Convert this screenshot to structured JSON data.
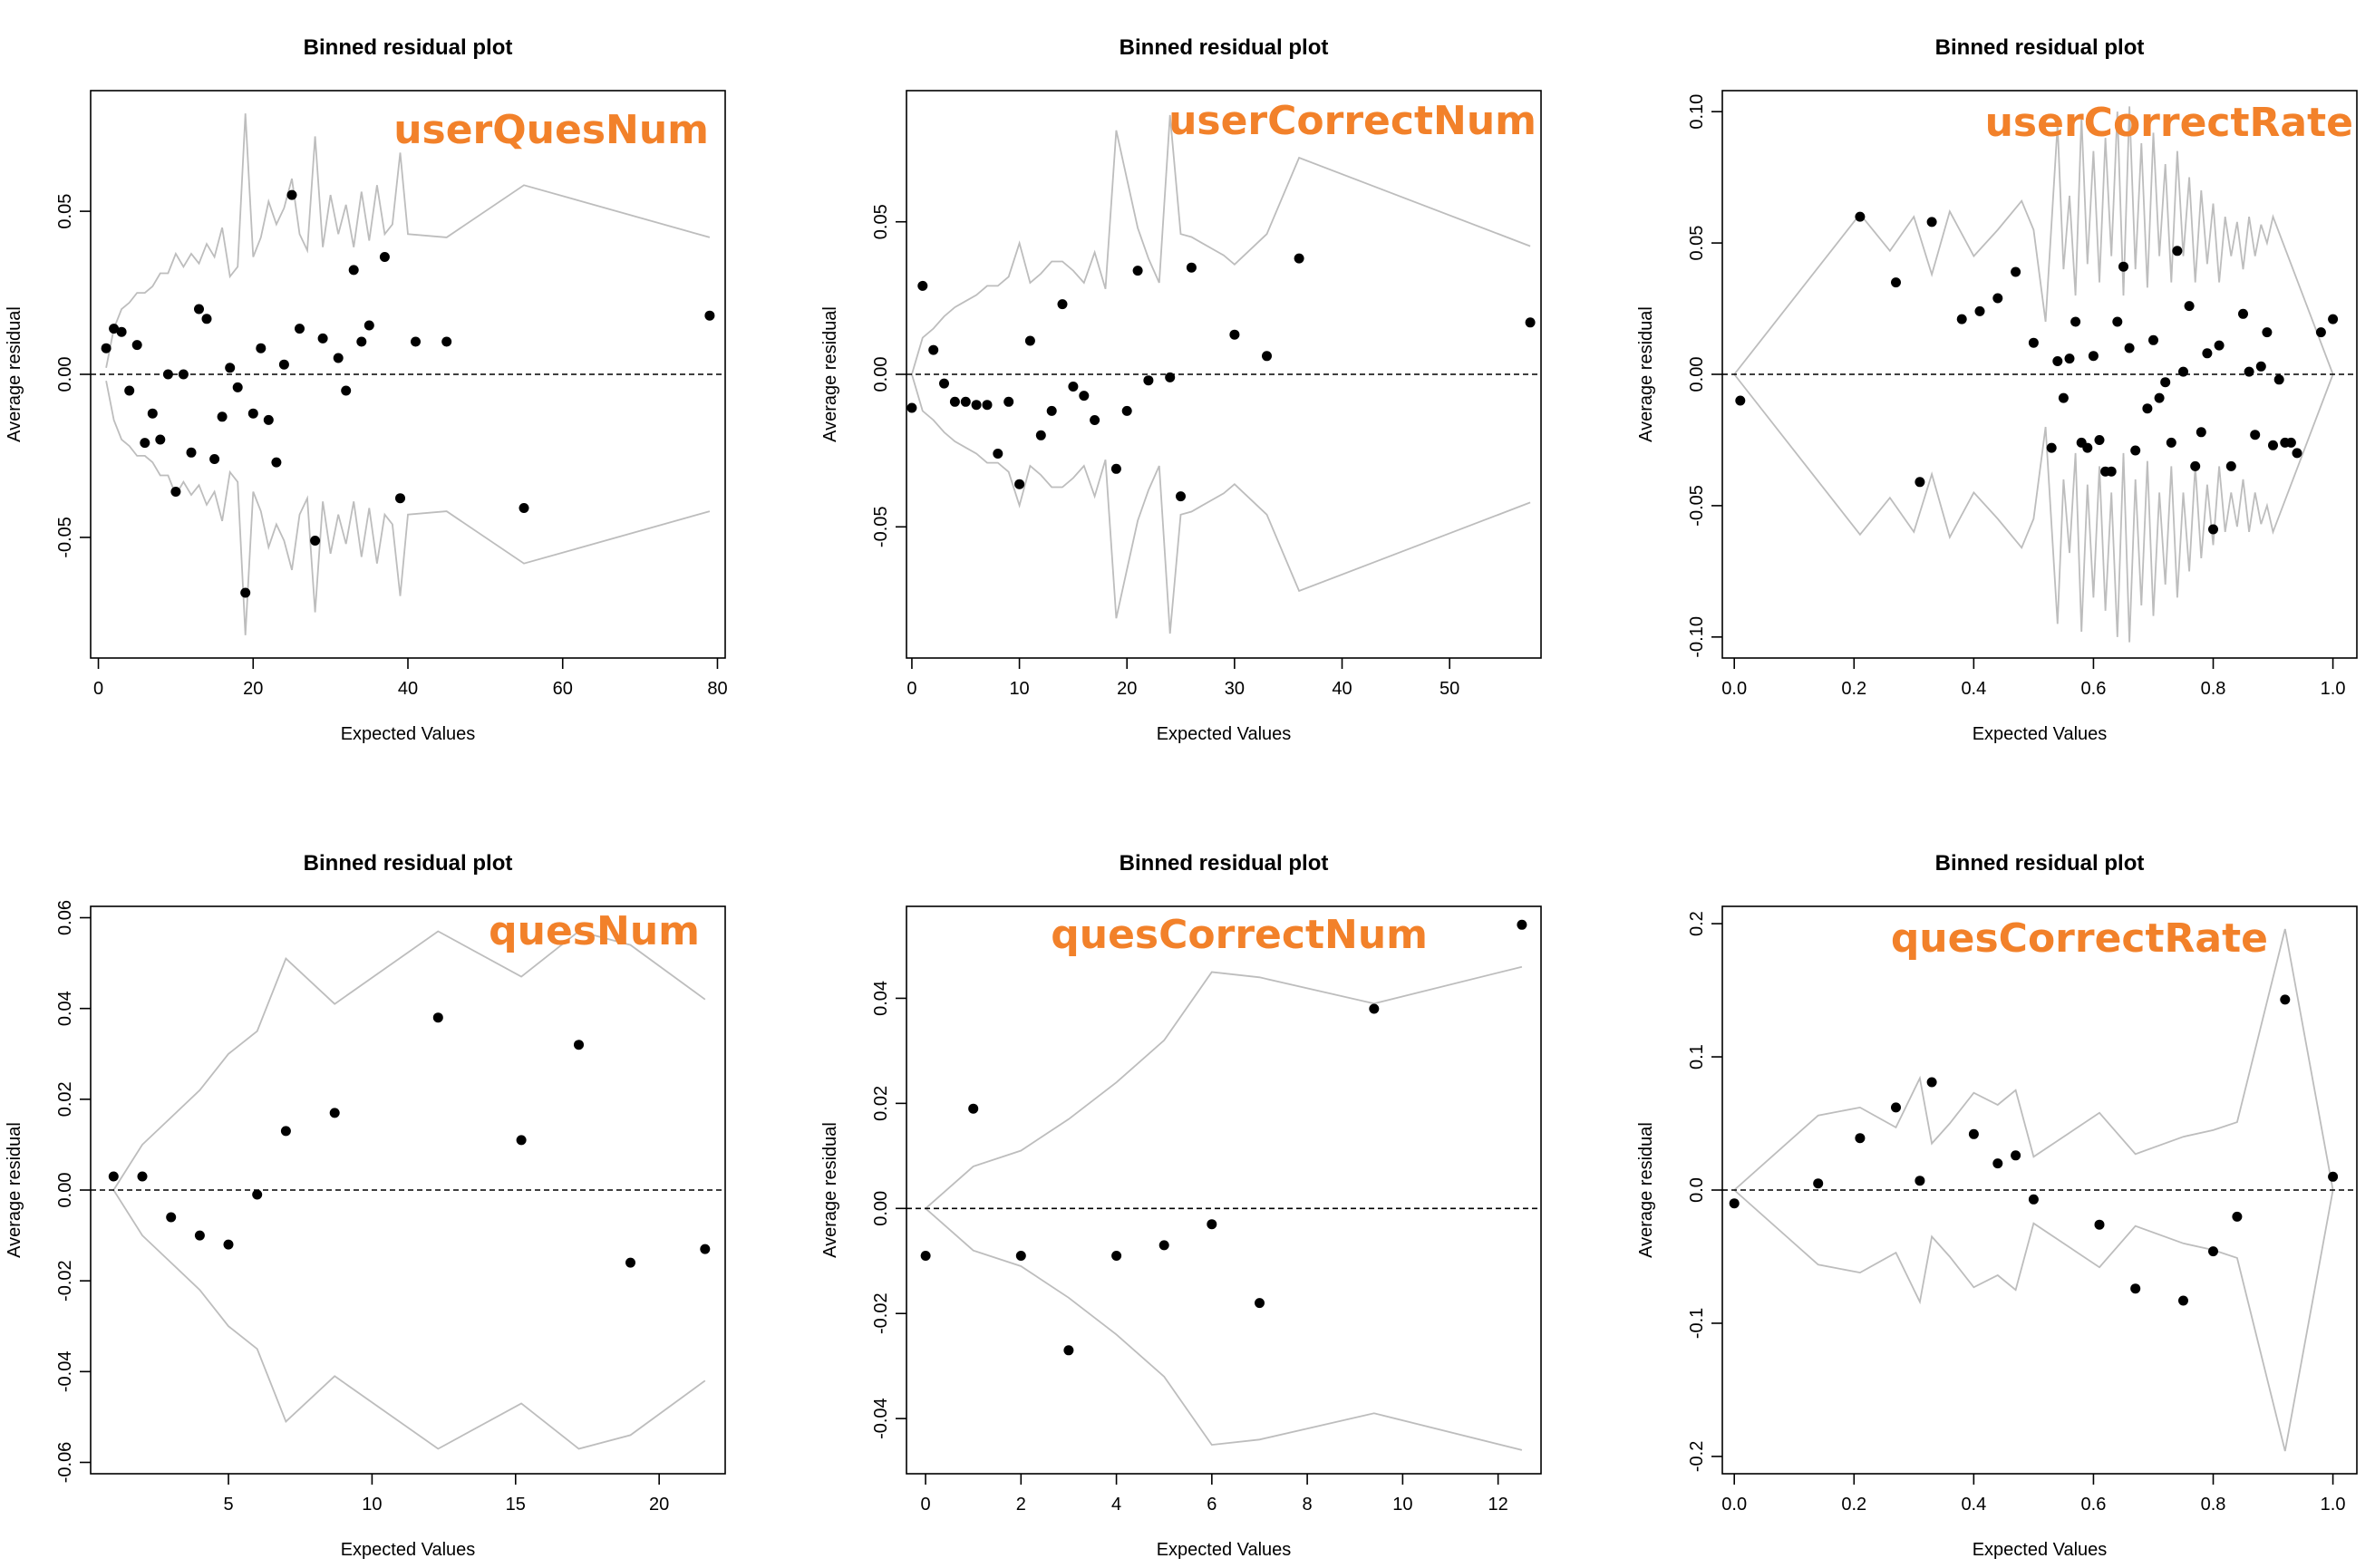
{
  "chart_data": [
    {
      "type": "scatter",
      "title": "Binned residual plot",
      "panel_label": "userQuesNum",
      "xlabel": "Expected Values",
      "ylabel": "Average residual",
      "xlim": [
        -1,
        81
      ],
      "ylim": [
        -0.087,
        0.087
      ],
      "xticks": [
        0,
        20,
        40,
        60,
        80
      ],
      "yticks": [
        -0.05,
        0.0,
        0.05
      ],
      "ytick_labels": [
        "-0.05",
        "0.00",
        "0.05"
      ],
      "points": [
        [
          1,
          0.008
        ],
        [
          2,
          0.014
        ],
        [
          3,
          0.013
        ],
        [
          4,
          -0.005
        ],
        [
          5,
          0.009
        ],
        [
          6,
          -0.021
        ],
        [
          7,
          -0.012
        ],
        [
          8,
          -0.02
        ],
        [
          9,
          0.0
        ],
        [
          10,
          -0.036
        ],
        [
          11,
          0.0
        ],
        [
          12,
          -0.024
        ],
        [
          13,
          0.02
        ],
        [
          14,
          0.017
        ],
        [
          15,
          -0.026
        ],
        [
          16,
          -0.013
        ],
        [
          17,
          0.002
        ],
        [
          18,
          -0.004
        ],
        [
          19,
          -0.067
        ],
        [
          20,
          -0.012
        ],
        [
          21,
          0.008
        ],
        [
          22,
          -0.014
        ],
        [
          23,
          -0.027
        ],
        [
          24,
          0.003
        ],
        [
          25,
          0.055
        ],
        [
          26,
          0.014
        ],
        [
          28,
          -0.051
        ],
        [
          29,
          0.011
        ],
        [
          31,
          0.005
        ],
        [
          32,
          -0.005
        ],
        [
          33,
          0.032
        ],
        [
          34,
          0.01
        ],
        [
          35,
          0.015
        ],
        [
          37,
          0.036
        ],
        [
          39,
          -0.038
        ],
        [
          41,
          0.01
        ],
        [
          45,
          0.01
        ],
        [
          55,
          -0.041
        ],
        [
          79,
          0.018
        ]
      ],
      "band_x": [
        1,
        2,
        3,
        4,
        5,
        6,
        7,
        8,
        9,
        10,
        11,
        12,
        13,
        14,
        15,
        16,
        17,
        18,
        19,
        20,
        21,
        22,
        23,
        24,
        25,
        26,
        27,
        28,
        29,
        30,
        31,
        32,
        33,
        34,
        35,
        36,
        37,
        38,
        39,
        40,
        45,
        55,
        79
      ],
      "band_upper": [
        0.002,
        0.014,
        0.02,
        0.022,
        0.025,
        0.025,
        0.027,
        0.031,
        0.031,
        0.037,
        0.033,
        0.037,
        0.034,
        0.04,
        0.036,
        0.045,
        0.03,
        0.033,
        0.08,
        0.036,
        0.042,
        0.053,
        0.046,
        0.051,
        0.06,
        0.043,
        0.038,
        0.073,
        0.039,
        0.055,
        0.043,
        0.052,
        0.039,
        0.056,
        0.041,
        0.058,
        0.043,
        0.046,
        0.068,
        0.043,
        0.042,
        0.058,
        0.042
      ]
    },
    {
      "type": "scatter",
      "title": "Binned residual plot",
      "panel_label": "userCorrectNum",
      "xlabel": "Expected Values",
      "ylabel": "Average residual",
      "xlim": [
        -0.5,
        58.5
      ],
      "ylim": [
        -0.093,
        0.093
      ],
      "xticks": [
        0,
        10,
        20,
        30,
        40,
        50
      ],
      "yticks": [
        -0.05,
        0.0,
        0.05
      ],
      "ytick_labels": [
        "-0.05",
        "0.00",
        "0.05"
      ],
      "points": [
        [
          0,
          -0.011
        ],
        [
          1,
          0.029
        ],
        [
          2,
          0.008
        ],
        [
          3,
          -0.003
        ],
        [
          4,
          -0.009
        ],
        [
          5,
          -0.009
        ],
        [
          6,
          -0.01
        ],
        [
          7,
          -0.01
        ],
        [
          8,
          -0.026
        ],
        [
          9,
          -0.009
        ],
        [
          10,
          -0.036
        ],
        [
          11,
          0.011
        ],
        [
          12,
          -0.02
        ],
        [
          13,
          -0.012
        ],
        [
          14,
          0.023
        ],
        [
          15,
          -0.004
        ],
        [
          16,
          -0.007
        ],
        [
          17,
          -0.015
        ],
        [
          19,
          -0.031
        ],
        [
          20,
          -0.012
        ],
        [
          21,
          0.034
        ],
        [
          22,
          -0.002
        ],
        [
          24,
          -0.001
        ],
        [
          25,
          -0.04
        ],
        [
          26,
          0.035
        ],
        [
          30,
          0.013
        ],
        [
          33,
          0.006
        ],
        [
          36,
          0.038
        ],
        [
          57.5,
          0.017
        ]
      ],
      "band_x": [
        0,
        1,
        2,
        3,
        4,
        5,
        6,
        7,
        8,
        9,
        10,
        11,
        12,
        13,
        14,
        15,
        16,
        17,
        18,
        19,
        20,
        21,
        22,
        23,
        24,
        25,
        26,
        27,
        28,
        29,
        30,
        33,
        36,
        57.5
      ],
      "band_upper": [
        0.0,
        0.012,
        0.015,
        0.019,
        0.022,
        0.024,
        0.026,
        0.029,
        0.029,
        0.032,
        0.043,
        0.03,
        0.033,
        0.037,
        0.037,
        0.034,
        0.03,
        0.04,
        0.028,
        0.08,
        0.064,
        0.048,
        0.038,
        0.03,
        0.085,
        0.046,
        0.045,
        0.043,
        0.041,
        0.039,
        0.036,
        0.046,
        0.071,
        0.042
      ]
    },
    {
      "type": "scatter",
      "title": "Binned residual plot",
      "panel_label": "userCorrectRate",
      "xlabel": "Expected Values",
      "ylabel": "Average residual",
      "xlim": [
        -0.02,
        1.04
      ],
      "ylim": [
        -0.108,
        0.108
      ],
      "xticks": [
        0.0,
        0.2,
        0.4,
        0.6,
        0.8,
        1.0
      ],
      "xtick_labels": [
        "0.0",
        "0.2",
        "0.4",
        "0.6",
        "0.8",
        "1.0"
      ],
      "yticks": [
        -0.1,
        -0.05,
        0.0,
        0.05,
        0.1
      ],
      "ytick_labels": [
        "-0.10",
        "-0.05",
        "0.00",
        "0.05",
        "0.10"
      ],
      "points": [
        [
          0.01,
          -0.01
        ],
        [
          0.21,
          0.06
        ],
        [
          0.27,
          0.035
        ],
        [
          0.31,
          -0.041
        ],
        [
          0.33,
          0.058
        ],
        [
          0.38,
          0.021
        ],
        [
          0.41,
          0.024
        ],
        [
          0.44,
          0.029
        ],
        [
          0.47,
          0.039
        ],
        [
          0.5,
          0.012
        ],
        [
          0.53,
          -0.028
        ],
        [
          0.54,
          0.005
        ],
        [
          0.55,
          -0.009
        ],
        [
          0.56,
          0.006
        ],
        [
          0.57,
          0.02
        ],
        [
          0.58,
          -0.026
        ],
        [
          0.59,
          -0.028
        ],
        [
          0.6,
          0.007
        ],
        [
          0.61,
          -0.025
        ],
        [
          0.62,
          -0.037
        ],
        [
          0.63,
          -0.037
        ],
        [
          0.64,
          0.02
        ],
        [
          0.65,
          0.041
        ],
        [
          0.66,
          0.01
        ],
        [
          0.67,
          -0.029
        ],
        [
          0.69,
          -0.013
        ],
        [
          0.7,
          0.013
        ],
        [
          0.71,
          -0.009
        ],
        [
          0.72,
          -0.003
        ],
        [
          0.73,
          -0.026
        ],
        [
          0.74,
          0.047
        ],
        [
          0.75,
          0.001
        ],
        [
          0.76,
          0.026
        ],
        [
          0.77,
          -0.035
        ],
        [
          0.78,
          -0.022
        ],
        [
          0.79,
          0.008
        ],
        [
          0.8,
          -0.059
        ],
        [
          0.81,
          0.011
        ],
        [
          0.83,
          -0.035
        ],
        [
          0.85,
          0.023
        ],
        [
          0.86,
          0.001
        ],
        [
          0.87,
          -0.023
        ],
        [
          0.88,
          0.003
        ],
        [
          0.89,
          0.016
        ],
        [
          0.9,
          -0.027
        ],
        [
          0.91,
          -0.002
        ],
        [
          0.92,
          -0.026
        ],
        [
          0.93,
          -0.026
        ],
        [
          0.94,
          -0.03
        ],
        [
          0.98,
          0.016
        ],
        [
          1.0,
          0.021
        ]
      ],
      "band_x": [
        0.0,
        0.21,
        0.26,
        0.3,
        0.33,
        0.36,
        0.4,
        0.44,
        0.48,
        0.5,
        0.52,
        0.54,
        0.55,
        0.56,
        0.57,
        0.58,
        0.59,
        0.6,
        0.61,
        0.62,
        0.63,
        0.64,
        0.65,
        0.66,
        0.67,
        0.68,
        0.69,
        0.7,
        0.71,
        0.72,
        0.73,
        0.74,
        0.75,
        0.76,
        0.77,
        0.78,
        0.79,
        0.8,
        0.81,
        0.82,
        0.83,
        0.84,
        0.85,
        0.86,
        0.87,
        0.88,
        0.89,
        0.9,
        1.0
      ],
      "band_upper": [
        0.0,
        0.061,
        0.047,
        0.06,
        0.038,
        0.062,
        0.045,
        0.055,
        0.066,
        0.055,
        0.02,
        0.095,
        0.04,
        0.068,
        0.03,
        0.098,
        0.042,
        0.085,
        0.035,
        0.09,
        0.045,
        0.1,
        0.03,
        0.102,
        0.04,
        0.088,
        0.033,
        0.092,
        0.045,
        0.08,
        0.035,
        0.085,
        0.045,
        0.075,
        0.035,
        0.07,
        0.042,
        0.065,
        0.035,
        0.06,
        0.045,
        0.058,
        0.04,
        0.06,
        0.045,
        0.057,
        0.05,
        0.06,
        0.0
      ]
    },
    {
      "type": "scatter",
      "title": "Binned residual plot",
      "panel_label": "quesNum",
      "xlabel": "Expected Values",
      "ylabel": "Average residual",
      "xlim": [
        0.2,
        22.3
      ],
      "ylim": [
        -0.0625,
        0.0625
      ],
      "xticks": [
        5,
        10,
        15,
        20
      ],
      "yticks": [
        -0.06,
        -0.04,
        -0.02,
        0.0,
        0.02,
        0.04,
        0.06
      ],
      "ytick_labels": [
        "-0.06",
        "-0.04",
        "-0.02",
        "0.00",
        "0.02",
        "0.04",
        "0.06"
      ],
      "points": [
        [
          1,
          0.003
        ],
        [
          2,
          0.003
        ],
        [
          3,
          -0.006
        ],
        [
          4,
          -0.01
        ],
        [
          5,
          -0.012
        ],
        [
          6,
          -0.001
        ],
        [
          7,
          0.013
        ],
        [
          8.7,
          0.017
        ],
        [
          12.3,
          0.038
        ],
        [
          15.2,
          0.011
        ],
        [
          17.2,
          0.032
        ],
        [
          19,
          -0.016
        ],
        [
          21.6,
          -0.013
        ]
      ],
      "band_x": [
        1,
        2,
        3,
        4,
        5,
        6,
        7,
        8.7,
        12.3,
        15.2,
        17.2,
        19,
        21.6
      ],
      "band_upper": [
        0.0,
        0.01,
        0.016,
        0.022,
        0.03,
        0.035,
        0.051,
        0.041,
        0.057,
        0.047,
        0.057,
        0.054,
        0.042
      ]
    },
    {
      "type": "scatter",
      "title": "Binned residual plot",
      "panel_label": "quesCorrectNum",
      "xlabel": "Expected Values",
      "ylabel": "Average residual",
      "xlim": [
        -0.4,
        12.9
      ],
      "ylim": [
        -0.0505,
        0.0575
      ],
      "xticks": [
        0,
        2,
        4,
        6,
        8,
        10,
        12
      ],
      "yticks": [
        -0.04,
        -0.02,
        0.0,
        0.02,
        0.04
      ],
      "ytick_labels": [
        "-0.04",
        "-0.02",
        "0.00",
        "0.02",
        "0.04"
      ],
      "points": [
        [
          0,
          -0.009
        ],
        [
          1,
          0.019
        ],
        [
          2,
          -0.009
        ],
        [
          3,
          -0.027
        ],
        [
          4,
          -0.009
        ],
        [
          5,
          -0.007
        ],
        [
          6,
          -0.003
        ],
        [
          7,
          -0.018
        ],
        [
          9.4,
          0.038
        ],
        [
          12.5,
          0.054
        ]
      ],
      "band_x": [
        0,
        1,
        2,
        3,
        4,
        5,
        6,
        7,
        9.4,
        12.5
      ],
      "band_upper": [
        0.0,
        0.008,
        0.011,
        0.017,
        0.024,
        0.032,
        0.045,
        0.044,
        0.039,
        0.046
      ]
    },
    {
      "type": "scatter",
      "title": "Binned residual plot",
      "panel_label": "quesCorrectRate",
      "xlabel": "Expected Values",
      "ylabel": "Average residual",
      "xlim": [
        -0.02,
        1.04
      ],
      "ylim": [
        -0.213,
        0.213
      ],
      "xticks": [
        0.0,
        0.2,
        0.4,
        0.6,
        0.8,
        1.0
      ],
      "xtick_labels": [
        "0.0",
        "0.2",
        "0.4",
        "0.6",
        "0.8",
        "1.0"
      ],
      "yticks": [
        -0.2,
        -0.1,
        0.0,
        0.1,
        0.2
      ],
      "ytick_labels": [
        "-0.2",
        "-0.1",
        "0.0",
        "0.1",
        "0.2"
      ],
      "points": [
        [
          0.0,
          -0.01
        ],
        [
          0.14,
          0.005
        ],
        [
          0.21,
          0.039
        ],
        [
          0.27,
          0.062
        ],
        [
          0.31,
          0.007
        ],
        [
          0.33,
          0.081
        ],
        [
          0.4,
          0.042
        ],
        [
          0.44,
          0.02
        ],
        [
          0.47,
          0.026
        ],
        [
          0.5,
          -0.007
        ],
        [
          0.61,
          -0.026
        ],
        [
          0.67,
          -0.074
        ],
        [
          0.75,
          -0.083
        ],
        [
          0.8,
          -0.046
        ],
        [
          0.84,
          -0.02
        ],
        [
          0.92,
          0.143
        ],
        [
          1.0,
          0.01
        ]
      ],
      "band_x": [
        0.0,
        0.14,
        0.21,
        0.27,
        0.31,
        0.33,
        0.36,
        0.4,
        0.44,
        0.47,
        0.5,
        0.61,
        0.67,
        0.75,
        0.8,
        0.84,
        0.92,
        1.0
      ],
      "band_upper": [
        0.0,
        0.056,
        0.062,
        0.047,
        0.084,
        0.035,
        0.05,
        0.073,
        0.064,
        0.075,
        0.025,
        0.058,
        0.027,
        0.04,
        0.045,
        0.051,
        0.196,
        0.0
      ]
    }
  ]
}
